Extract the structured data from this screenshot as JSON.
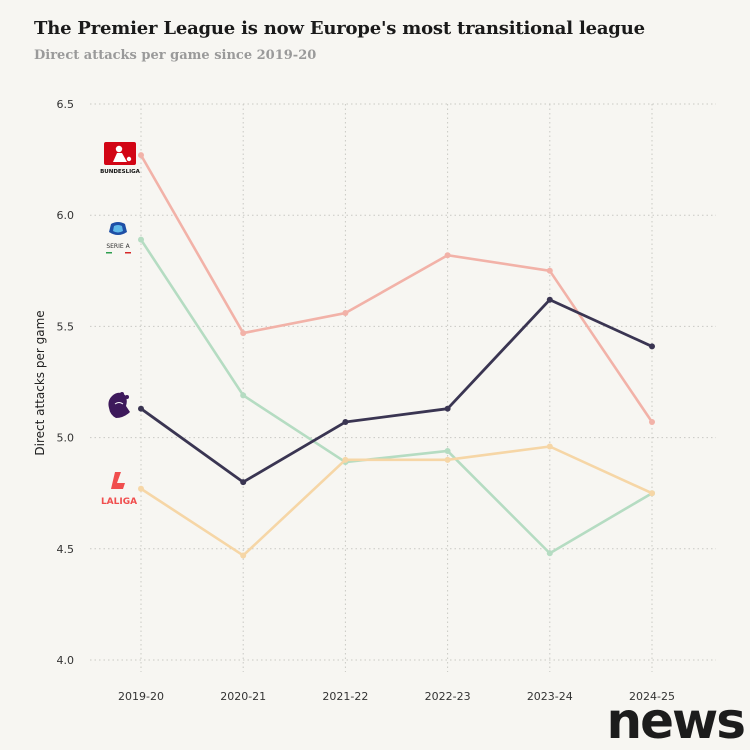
{
  "title": "The Premier League is now Europe's most transitional league",
  "subtitle": "Direct attacks per game since 2019-20",
  "watermark": "news",
  "chart_data": {
    "type": "line",
    "title": "The Premier League is now Europe's most transitional league",
    "subtitle": "Direct attacks per game since 2019-20",
    "xlabel": "",
    "ylabel": "Direct attacks per game",
    "categories": [
      "2019-20",
      "2020-21",
      "2021-22",
      "2022-23",
      "2023-24",
      "2024-25"
    ],
    "ylim": [
      4.0,
      6.5
    ],
    "yticks": [
      4.0,
      4.5,
      5.0,
      5.5,
      6.0,
      6.5
    ],
    "grid": true,
    "series": [
      {
        "logo": "bundesliga-logo",
        "logo_text": "BUNDESLIGA",
        "color": "#f2b2a8",
        "values": [
          6.27,
          5.47,
          5.56,
          5.82,
          5.75,
          5.07
        ]
      },
      {
        "logo": "serie-a-logo",
        "logo_text": "SERIE A",
        "color": "#b5dcc2",
        "values": [
          5.89,
          5.19,
          4.89,
          4.94,
          4.48,
          4.75
        ]
      },
      {
        "logo": "premier-league-logo",
        "logo_text": "",
        "color": "#3a3552",
        "values": [
          5.13,
          4.8,
          5.07,
          5.13,
          5.62,
          5.41
        ]
      },
      {
        "logo": "laliga-logo",
        "logo_text": "LALIGA",
        "color": "#f6d6a6",
        "values": [
          4.77,
          4.47,
          4.9,
          4.9,
          4.96,
          4.75
        ]
      }
    ]
  }
}
